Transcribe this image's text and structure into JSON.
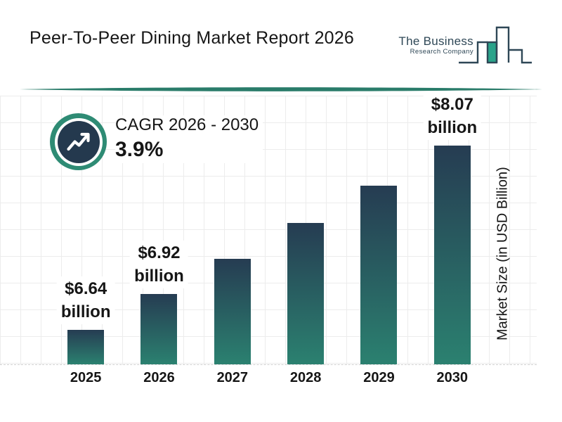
{
  "header": {
    "title": "Peer-To-Peer Dining Market Report 2026",
    "logo": {
      "name": "The Business",
      "subname": "Research Company"
    }
  },
  "cagr": {
    "label": "CAGR 2026 - 2030",
    "value": "3.9%"
  },
  "colors": {
    "text": "#161616",
    "teal": "#2E8B74",
    "navy": "#24394E",
    "bar_top": "#263C52",
    "bar_bottom": "#2B8170",
    "divider": "#2A7C6A",
    "grid": "#ECECEC",
    "logo_fill": "#2AA38A",
    "logo_outline": "#2E4756"
  },
  "chart_data": {
    "type": "bar",
    "categories": [
      "2025",
      "2026",
      "2027",
      "2028",
      "2029",
      "2030"
    ],
    "values": [
      6.64,
      6.92,
      7.19,
      7.47,
      7.76,
      8.07
    ],
    "unit": "USD Billion",
    "title": "Peer-To-Peer Dining Market Report 2026",
    "xlabel": "",
    "ylabel": "Market Size (in USD Billion)",
    "ylim": [
      6.37,
      8.45
    ],
    "grid": true,
    "legend": false,
    "bar_labels": [
      {
        "year": "2025",
        "line1": "$6.64",
        "line2": "billion"
      },
      {
        "year": "2026",
        "line1": "$6.92",
        "line2": "billion"
      },
      {
        "year": "2030",
        "line1": "$8.07",
        "line2": "billion"
      }
    ]
  }
}
